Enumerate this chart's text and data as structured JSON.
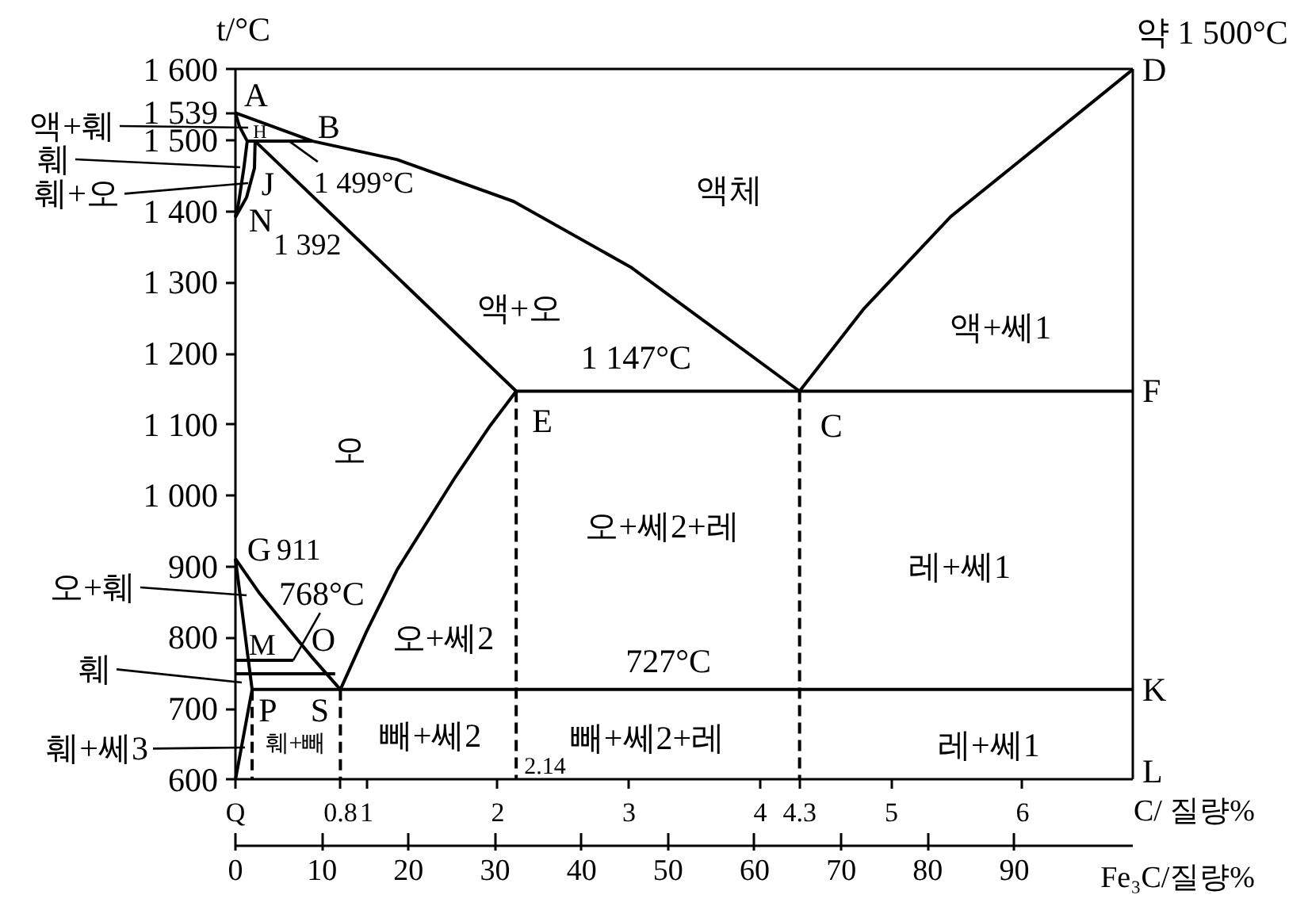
{
  "chart_data": {
    "type": "line",
    "xlim": [
      0,
      6.84
    ],
    "ylim": [
      600,
      1600
    ],
    "x2lim": [
      0,
      103.7
    ],
    "xlabel": "C/ 질량%",
    "x2label": "Fe₃C/질량%",
    "ylabel": "t/°C",
    "xticks": [
      {
        "value": 0,
        "label": "Q"
      },
      0.8,
      1,
      2,
      3,
      4,
      4.3,
      5,
      6
    ],
    "x2ticks": [
      0,
      10,
      20,
      30,
      40,
      50,
      60,
      70,
      80,
      90
    ],
    "yticks": [
      600,
      700,
      800,
      900,
      {
        "value": 1000,
        "label": "1 000"
      },
      {
        "value": 1100,
        "label": "1 100"
      },
      {
        "value": 1200,
        "label": "1 200"
      },
      {
        "value": 1300,
        "label": "1 300"
      },
      {
        "value": 1400,
        "label": "1 400"
      },
      {
        "value": 1500,
        "label": "1 500"
      },
      {
        "value": 1539,
        "label": "1 539"
      },
      {
        "value": 1600,
        "label": "1 600"
      }
    ],
    "series": [
      {
        "color": "#000000",
        "x": [
          0,
          0.59,
          1.234,
          2.122,
          3.01,
          3.675,
          4.3,
          4.785,
          5.453,
          6.118,
          6.84
        ],
        "values": [
          1539,
          1499,
          1473,
          1414,
          1322,
          1232,
          1147,
          1262,
          1393,
          1492,
          1600
        ]
      },
      {
        "color": "#000000",
        "x": [
          0,
          0.03,
          0.09,
          0.064,
          0.024,
          0
        ],
        "values": [
          1539,
          1520,
          1499,
          1461,
          1412,
          1392
        ]
      },
      {
        "color": "#000000",
        "x": [
          0,
          0.085,
          0.145,
          0.15,
          2.14
        ],
        "values": [
          1392,
          1420,
          1461,
          1499,
          1147
        ]
      },
      {
        "color": "#000000",
        "x": [
          0.09,
          0.59
        ],
        "values": [
          1499,
          1499
        ]
      },
      {
        "color": "#000000",
        "x": [
          0,
          0.185,
          0.447,
          0.59,
          0.8,
          1.0,
          1.234,
          1.679,
          1.944,
          2.14
        ],
        "values": [
          911,
          862,
          803,
          771,
          727,
          809,
          896,
          1027,
          1099,
          1147
        ]
      },
      {
        "color": "#000000",
        "x": [
          2.14,
          6.84
        ],
        "values": [
          1147,
          1147
        ]
      },
      {
        "color": "#000000",
        "line_style": "dashed",
        "x": [
          2.14,
          2.14
        ],
        "values": [
          1147,
          600
        ]
      },
      {
        "color": "#000000",
        "line_style": "dashed",
        "x": [
          4.3,
          4.3
        ],
        "values": [
          1147,
          600
        ]
      },
      {
        "color": "#000000",
        "x": [
          0,
          0.127,
          0
        ],
        "values": [
          911,
          727,
          600
        ]
      },
      {
        "color": "#000000",
        "x": [
          0,
          0.44
        ],
        "values": [
          768,
          768
        ]
      },
      {
        "color": "#000000",
        "x": [
          0,
          0.76
        ],
        "values": [
          749,
          749
        ]
      },
      {
        "color": "#000000",
        "x": [
          0.127,
          6.84
        ],
        "values": [
          727,
          727
        ]
      },
      {
        "color": "#000000",
        "line_style": "dashed",
        "x": [
          0.127,
          0.127
        ],
        "values": [
          727,
          600
        ]
      },
      {
        "color": "#000000",
        "line_style": "dashed",
        "x": [
          0.8,
          0.8
        ],
        "values": [
          727,
          600
        ]
      }
    ],
    "annotations": [
      {
        "text": "A",
        "x": 0,
        "y": 1539
      },
      {
        "text": "B",
        "x": 0.59,
        "y": 1499
      },
      {
        "text": "H",
        "x": 0.09,
        "y": 1499
      },
      {
        "text": "J",
        "x": 0.15,
        "y": 1499
      },
      {
        "text": "N",
        "x": 0,
        "y": 1392
      },
      {
        "text": "1 499°C",
        "x": 0.41,
        "y": 1499
      },
      {
        "text": "1 147°C",
        "x": 3.054,
        "y": 1147
      },
      {
        "text": "727°C",
        "x": 3.3,
        "y": 727
      },
      {
        "text": "768°C",
        "x": 0.44,
        "y": 768
      },
      {
        "text": "E",
        "x": 2.14,
        "y": 1147
      },
      {
        "text": "C",
        "x": 4.3,
        "y": 1147
      },
      {
        "text": "G",
        "x": 0,
        "y": 911
      },
      {
        "text": "M",
        "x": 0,
        "y": 768
      },
      {
        "text": "O",
        "x": 0.44,
        "y": 768
      },
      {
        "text": "P",
        "x": 0.127,
        "y": 727
      },
      {
        "text": "S",
        "x": 0.8,
        "y": 727
      },
      {
        "text": "D",
        "x": 6.84,
        "y": 1600
      },
      {
        "text": "F",
        "x": 6.84,
        "y": 1147
      },
      {
        "text": "K",
        "x": 6.84,
        "y": 727
      },
      {
        "text": "1 392",
        "x": 0,
        "y": 1392
      },
      {
        "text": "911",
        "x": 0,
        "y": 911
      },
      {
        "text": "2.14",
        "x": 2.14,
        "y": 600
      },
      "L",
      "약 1 500°C",
      "액체",
      "액+오",
      "액+쎄1",
      "오",
      "오+쎄2+레",
      "레+쎄1",
      "오+쎄2",
      "빼+쎄2",
      "빼+쎄2+레",
      "레+쎄1",
      "훼+빼",
      "액+훼",
      "훼",
      "훼+오",
      "오+훼",
      "훼",
      "훼+쎄3"
    ]
  }
}
